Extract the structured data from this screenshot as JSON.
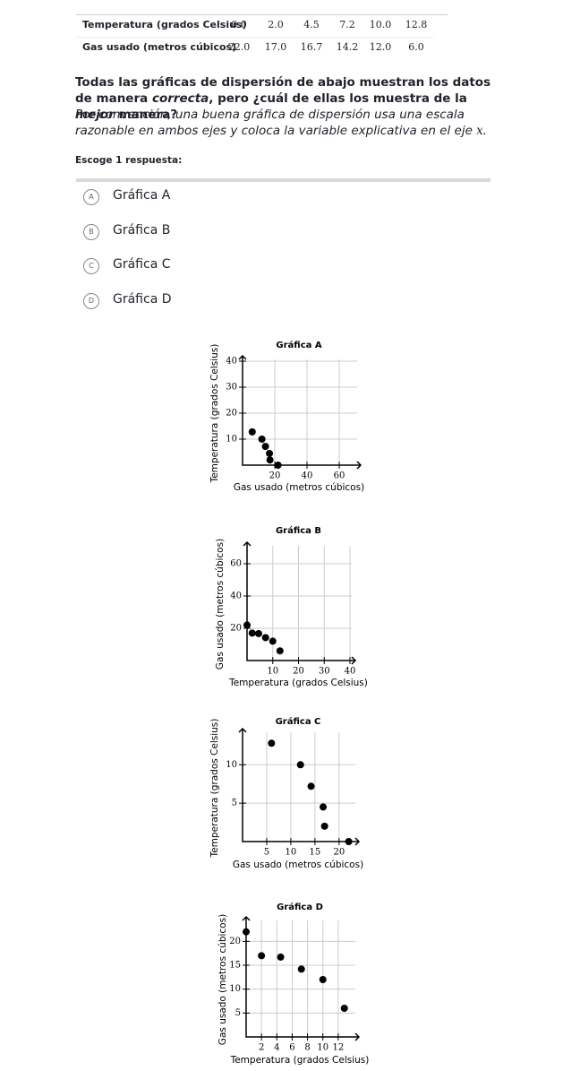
{
  "table": {
    "rows": [
      [
        "Temperatura (grados Celsius)",
        "0.0",
        "2.0",
        "4.5",
        "7.2",
        "10.0",
        "12.8"
      ],
      [
        "Gas usado (metros cúbicos)",
        "22.0",
        "17.0",
        "16.7",
        "14.2",
        "12.0",
        "6.0"
      ]
    ]
  },
  "question": {
    "text": [
      "Todas las gráficas de dispersión de abajo muestran los datos de manera ",
      "correcta",
      ", pero ¿cuál de ellas los muestra de la ",
      "mejor",
      " manera?"
    ],
    "hint": [
      "Por convención, una buena gráfica de dispersión usa una escala razonable en ambos ejes y coloca la variable explicativa en el eje ",
      "x",
      "."
    ],
    "prompt": "Escoge 1 respuesta:"
  },
  "choices": [
    {
      "letter": "A",
      "label": "Gráfica A"
    },
    {
      "letter": "B",
      "label": "Gráfica B"
    },
    {
      "letter": "C",
      "label": "Gráfica C"
    },
    {
      "letter": "D",
      "label": "Gráfica D"
    }
  ],
  "chart_data": [
    {
      "type": "scatter",
      "title": "Gráfica A",
      "x_label": "Gas usado (metros cúbicos)",
      "y_label": "Temperatura (grados Celsius)",
      "x": [
        22.0,
        17.0,
        16.7,
        14.2,
        12.0,
        6.0
      ],
      "values": [
        0.0,
        2.0,
        4.5,
        7.2,
        10.0,
        12.8
      ],
      "color": "#000000",
      "xlim": [
        0,
        70
      ],
      "ylim": [
        0,
        40
      ],
      "xticks": [
        20,
        40,
        60
      ],
      "yticks": [
        10,
        20,
        30,
        40
      ],
      "grid": true
    },
    {
      "type": "scatter",
      "title": "Gráfica B",
      "x_label": "Temperatura (grados Celsius)",
      "y_label": "Gas usado (metros cúbicos)",
      "x": [
        0.0,
        2.0,
        4.5,
        7.2,
        10.0,
        12.8
      ],
      "values": [
        22.0,
        17.0,
        16.7,
        14.2,
        12.0,
        6.0
      ],
      "color": "#000000",
      "xlim": [
        0,
        40
      ],
      "ylim": [
        0,
        70
      ],
      "xticks": [
        10,
        20,
        30,
        40
      ],
      "yticks": [
        20,
        40,
        60
      ],
      "grid": true
    },
    {
      "type": "scatter",
      "title": "Gráfica C",
      "x_label": "Gas usado (metros cúbicos)",
      "y_label": "Temperatura (grados Celsius)",
      "x": [
        22.0,
        17.0,
        16.7,
        14.2,
        12.0,
        6.0
      ],
      "values": [
        0.0,
        2.0,
        4.5,
        7.2,
        10.0,
        12.8
      ],
      "color": "#000000",
      "xlim": [
        0,
        23
      ],
      "ylim": [
        0,
        14
      ],
      "xticks": [
        5,
        10,
        15,
        20
      ],
      "yticks": [
        5,
        10
      ],
      "grid": true
    },
    {
      "type": "scatter",
      "title": "Gráfica D",
      "x_label": "Temperatura (grados Celsius)",
      "y_label": "Gas usado (metros cúbicos)",
      "x": [
        0.0,
        2.0,
        4.5,
        7.2,
        10.0,
        12.8
      ],
      "values": [
        22.0,
        17.0,
        16.7,
        14.2,
        12.0,
        6.0
      ],
      "color": "#000000",
      "xlim": [
        0,
        14
      ],
      "ylim": [
        0,
        24
      ],
      "xticks": [
        2,
        4,
        6,
        8,
        10,
        12
      ],
      "yticks": [
        5,
        10,
        15,
        20
      ],
      "grid": true
    }
  ]
}
